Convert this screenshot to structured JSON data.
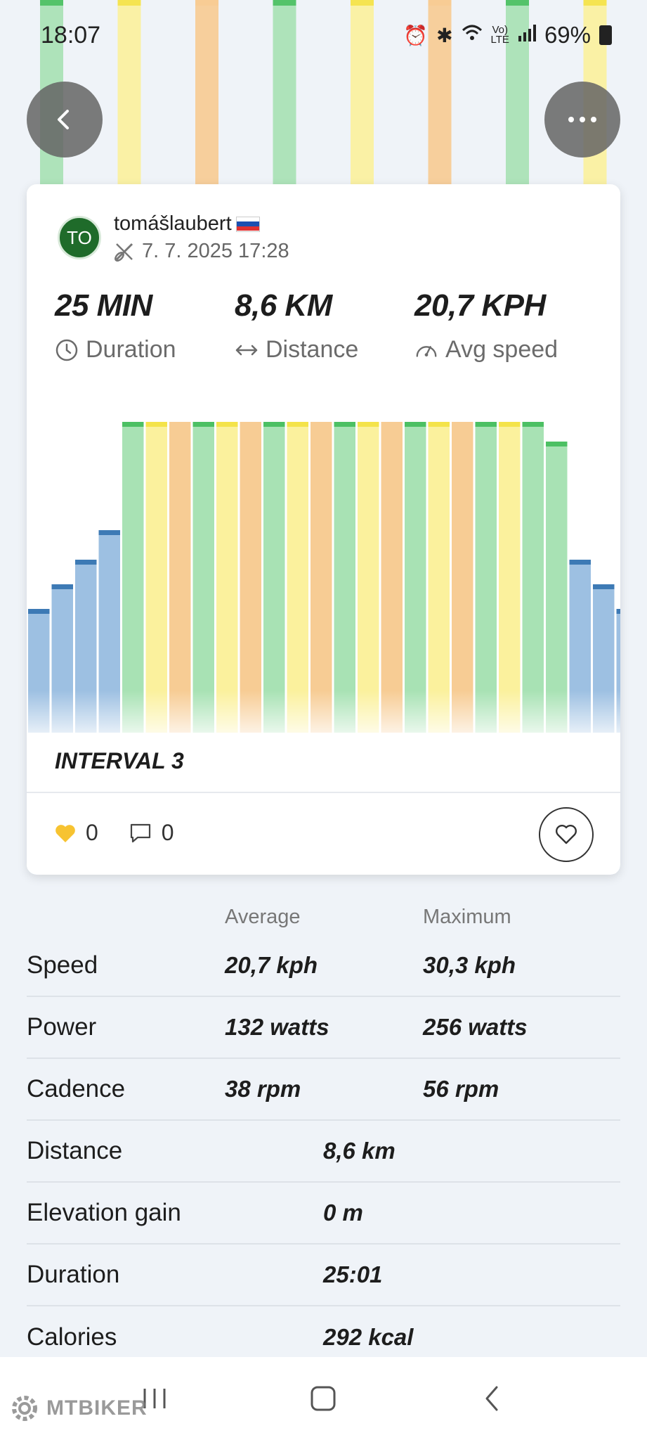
{
  "status_bar": {
    "time": "18:07",
    "battery": "69%",
    "icons": [
      "alarm-icon",
      "bluetooth-icon",
      "wifi-icon",
      "volte-icon",
      "signal-icon",
      "battery-icon"
    ]
  },
  "header": {
    "back_icon": "chevron-left-icon",
    "more_icon": "more-dots-icon"
  },
  "activity": {
    "avatar_initials": "TO",
    "author_name": "tomášlaubert",
    "flag": "slovakia-flag",
    "datetime": "7. 7. 2025 17:28",
    "metrics": [
      {
        "value": "25 MIN",
        "label": "Duration",
        "icon": "clock-icon"
      },
      {
        "value": "8,6 KM",
        "label": "Distance",
        "icon": "arrows-horizontal-icon"
      },
      {
        "value": "20,7 KPH",
        "label": "Avg speed",
        "icon": "gauge-icon"
      }
    ],
    "title": "INTERVAL 3",
    "likes": "0",
    "comments": "0"
  },
  "chart_data": {
    "type": "bar",
    "description_units": "relative intensity 0-1 per interval segment",
    "values": [
      0.62,
      0.67,
      0.72,
      0.78,
      1.0,
      1.0,
      1.0,
      1.0,
      1.0,
      1.0,
      1.0,
      1.0,
      1.0,
      1.0,
      1.0,
      1.0,
      1.0,
      1.0,
      1.0,
      1.0,
      1.0,
      1.0,
      0.96,
      0.72,
      0.67,
      0.62
    ],
    "zones": [
      "blue",
      "blue",
      "blue",
      "blue",
      "green",
      "yellow",
      "orange",
      "green",
      "yellow",
      "orange",
      "green",
      "yellow",
      "orange",
      "green",
      "yellow",
      "orange",
      "green",
      "yellow",
      "orange",
      "green",
      "yellow",
      "green",
      "green",
      "blue",
      "blue",
      "blue"
    ],
    "zone_colors": {
      "blue": {
        "fill": "#9dc0e2",
        "cap": "#3d7ab5"
      },
      "green": {
        "fill": "#a8e2b4",
        "cap": "#4cc063"
      },
      "yellow": {
        "fill": "#fbf19d",
        "cap": "#f4e34a"
      },
      "orange": {
        "fill": "#f7cc94",
        "cap": "#f7cc94"
      }
    }
  },
  "stats": {
    "col_average": "Average",
    "col_maximum": "Maximum",
    "rows": [
      {
        "label": "Speed",
        "avg": "20,7 kph",
        "max": "30,3 kph"
      },
      {
        "label": "Power",
        "avg": "132 watts",
        "max": "256 watts"
      },
      {
        "label": "Cadence",
        "avg": "38 rpm",
        "max": "56 rpm"
      }
    ],
    "single_rows": [
      {
        "label": "Distance",
        "value": "8,6 km"
      },
      {
        "label": "Elevation gain",
        "value": "0 m"
      },
      {
        "label": "Duration",
        "value": "25:01"
      },
      {
        "label": "Calories",
        "value": "292 kcal"
      }
    ]
  },
  "navbar": {
    "items": [
      "recent-apps-icon",
      "home-icon",
      "back-icon"
    ]
  },
  "watermark": "MTBIKER"
}
